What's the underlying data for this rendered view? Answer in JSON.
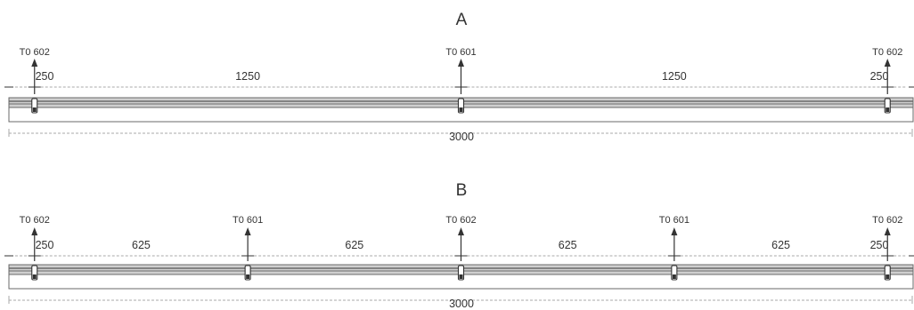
{
  "panels": [
    {
      "title": "A",
      "mounts": [
        {
          "position": 85,
          "tag": "T0 602"
        },
        {
          "position": 1500,
          "tag": "T0 601"
        },
        {
          "position": 2915,
          "tag": "T0 602"
        }
      ],
      "spacing_labels": [
        "250",
        "1250",
        "1250",
        "250"
      ],
      "total_length_label": "3000"
    },
    {
      "title": "B",
      "mounts": [
        {
          "position": 85,
          "tag": "T0 602"
        },
        {
          "position": 792.5,
          "tag": "T0 601"
        },
        {
          "position": 1500,
          "tag": "T0 602"
        },
        {
          "position": 2207.5,
          "tag": "T0 601"
        },
        {
          "position": 2915,
          "tag": "T0 602"
        }
      ],
      "spacing_labels": [
        "250",
        "625",
        "625",
        "625",
        "625",
        "250"
      ],
      "total_length_label": "3000"
    }
  ],
  "total_length": 3000,
  "colors": {
    "ink": "#333333",
    "dimension_line": "#aaaaaa",
    "rail_fill": "#cfcfcf",
    "rail_groove": "#6a6a6a"
  },
  "icon": "arrow-up-icon"
}
